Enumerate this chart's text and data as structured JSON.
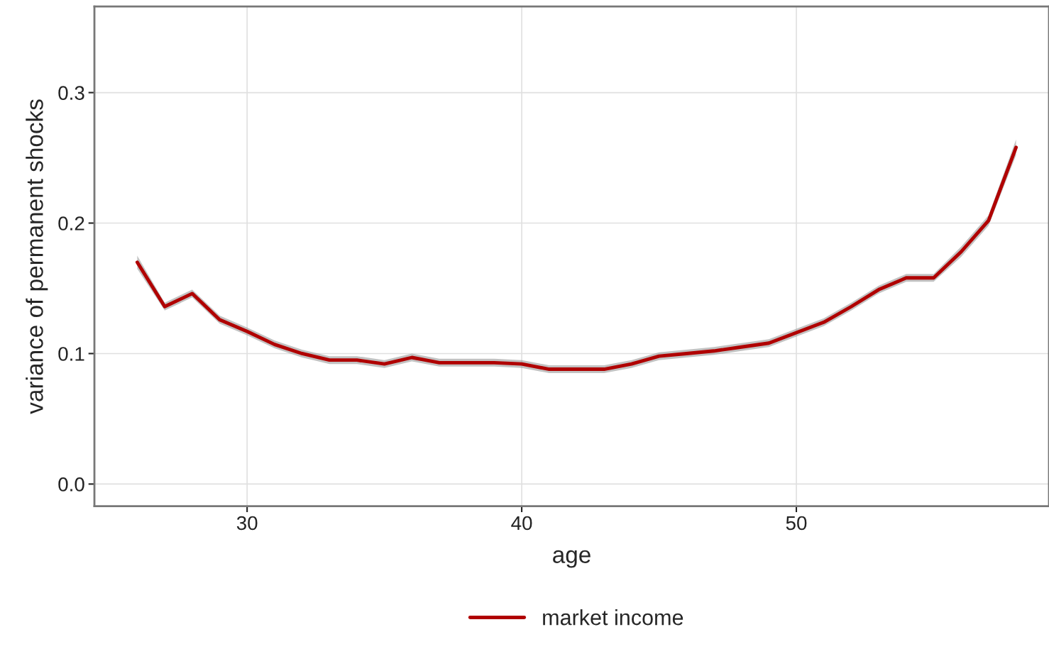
{
  "chart_data": {
    "type": "line",
    "xlabel": "age",
    "ylabel": "variance of permanent shocks",
    "x": [
      26,
      27,
      28,
      29,
      30,
      31,
      32,
      33,
      34,
      35,
      36,
      37,
      38,
      39,
      40,
      41,
      42,
      43,
      44,
      45,
      46,
      47,
      48,
      49,
      50,
      51,
      52,
      53,
      54,
      55,
      56,
      57,
      58
    ],
    "series": [
      {
        "name": "market income",
        "color": "#b00000",
        "values": [
          0.17,
          0.136,
          0.146,
          0.126,
          0.117,
          0.107,
          0.1,
          0.095,
          0.095,
          0.092,
          0.097,
          0.093,
          0.093,
          0.093,
          0.092,
          0.088,
          0.088,
          0.088,
          0.092,
          0.098,
          0.1,
          0.102,
          0.105,
          0.108,
          0.116,
          0.124,
          0.136,
          0.149,
          0.158,
          0.158,
          0.178,
          0.202,
          0.258
        ],
        "lower": [
          0.165,
          0.133,
          0.143,
          0.123,
          0.114,
          0.104,
          0.097,
          0.092,
          0.092,
          0.089,
          0.094,
          0.09,
          0.09,
          0.09,
          0.089,
          0.085,
          0.085,
          0.085,
          0.089,
          0.095,
          0.097,
          0.099,
          0.102,
          0.105,
          0.113,
          0.121,
          0.133,
          0.146,
          0.155,
          0.155,
          0.174,
          0.198,
          0.252
        ],
        "upper": [
          0.175,
          0.139,
          0.149,
          0.129,
          0.12,
          0.11,
          0.103,
          0.098,
          0.098,
          0.095,
          0.1,
          0.096,
          0.096,
          0.096,
          0.095,
          0.091,
          0.091,
          0.091,
          0.095,
          0.101,
          0.103,
          0.105,
          0.108,
          0.111,
          0.119,
          0.127,
          0.139,
          0.152,
          0.161,
          0.161,
          0.182,
          0.206,
          0.264
        ]
      }
    ],
    "xlim": [
      24.44,
      59.2
    ],
    "ylim": [
      -0.017,
      0.366
    ],
    "xticks": [
      30,
      40,
      50
    ],
    "yticks": [
      {
        "value": 0,
        "label": "0.0"
      },
      0.1,
      0.2,
      0.3
    ],
    "grid": true,
    "legend": "bottom",
    "line_style": "solid",
    "marker": "none"
  }
}
